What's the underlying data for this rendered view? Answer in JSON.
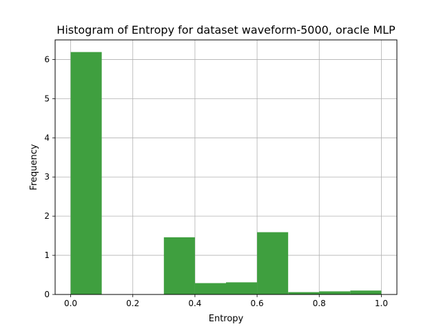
{
  "chart_data": {
    "type": "bar",
    "title": "Histogram of Entropy for dataset waveform-5000, oracle MLP",
    "xlabel": "Entropy",
    "ylabel": "Frequency",
    "xlim": [
      -0.05,
      1.05
    ],
    "ylim": [
      0,
      6.5
    ],
    "grid": true,
    "bar_color": "#3f9f3f",
    "bins": [
      {
        "x0": 0.0,
        "x1": 0.1,
        "value": 6.19
      },
      {
        "x0": 0.1,
        "x1": 0.2,
        "value": 0
      },
      {
        "x0": 0.2,
        "x1": 0.3,
        "value": 0
      },
      {
        "x0": 0.3,
        "x1": 0.4,
        "value": 1.46
      },
      {
        "x0": 0.4,
        "x1": 0.5,
        "value": 0.29
      },
      {
        "x0": 0.5,
        "x1": 0.6,
        "value": 0.31
      },
      {
        "x0": 0.6,
        "x1": 0.7,
        "value": 1.59
      },
      {
        "x0": 0.7,
        "x1": 0.8,
        "value": 0.06
      },
      {
        "x0": 0.8,
        "x1": 0.9,
        "value": 0.08
      },
      {
        "x0": 0.9,
        "x1": 1.0,
        "value": 0.1
      }
    ],
    "x_ticks": [
      {
        "value": 0.0,
        "label": "0.0"
      },
      {
        "value": 0.2,
        "label": "0.2"
      },
      {
        "value": 0.4,
        "label": "0.4"
      },
      {
        "value": 0.6,
        "label": "0.6"
      },
      {
        "value": 0.8,
        "label": "0.8"
      },
      {
        "value": 1.0,
        "label": "1.0"
      }
    ],
    "y_ticks": [
      {
        "value": 0,
        "label": "0"
      },
      {
        "value": 1,
        "label": "1"
      },
      {
        "value": 2,
        "label": "2"
      },
      {
        "value": 3,
        "label": "3"
      },
      {
        "value": 4,
        "label": "4"
      },
      {
        "value": 5,
        "label": "5"
      },
      {
        "value": 6,
        "label": "6"
      }
    ]
  }
}
